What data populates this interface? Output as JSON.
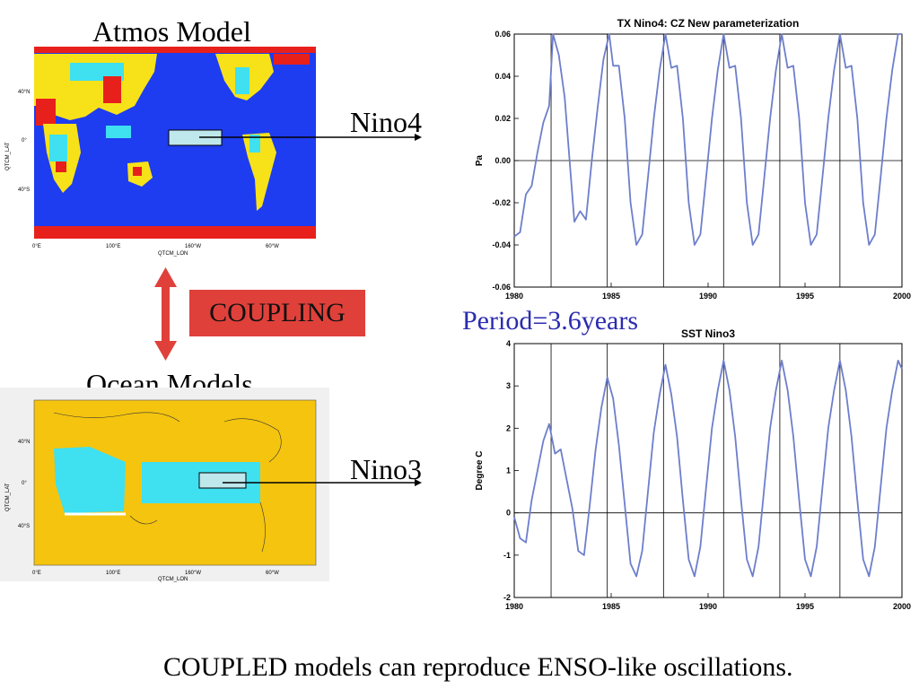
{
  "labels": {
    "atmos_title": "Atmos Model",
    "ocean_title": "Ocean Models",
    "coupling": "COUPLING",
    "nino4": "Nino4",
    "nino3": "Nino3",
    "period": "Period=3.6years",
    "caption": "COUPLED models can reproduce ENSO-like oscillations."
  },
  "maps": {
    "atmos": {
      "ylabel": "QTCM_LAT",
      "xlabel": "QTCM_LON",
      "xticks": [
        "0°E",
        "100°E",
        "160°W",
        "60°W"
      ],
      "yticks": [
        "40°N",
        "0°",
        "40°S"
      ]
    },
    "ocean": {
      "ylabel": "QTCM_LAT",
      "xlabel": "QTCM_LON",
      "xticks": [
        "0°E",
        "100°E",
        "160°W",
        "60°W"
      ],
      "yticks": [
        "40°N",
        "0°",
        "40°S"
      ]
    }
  },
  "colors": {
    "ocean_blue": "#1e3cf0",
    "cyan": "#3fe0f0",
    "yellow": "#f7e21a",
    "red": "#e8201c",
    "land_gold": "#f5c40f",
    "box_fill": "#bfe8ec",
    "series": "#6d7ecb",
    "coupling_bg": "#e0403a",
    "period_text": "#2b2bb0"
  },
  "chart_data": [
    {
      "type": "line",
      "title": "TX Nino4: CZ New parameterization",
      "xlabel": "",
      "ylabel": "Pa",
      "xlim": [
        1980,
        2000
      ],
      "ylim": [
        -0.06,
        0.06
      ],
      "xticks": [
        "1980",
        "1985",
        "1990",
        "1995",
        "2000"
      ],
      "yticks": [
        "-0.06",
        "-0.04",
        "-0.02",
        "0.00",
        "0.02",
        "0.04",
        "0.06"
      ],
      "grid": false,
      "vlines": [
        1981.9,
        1984.8,
        1987.7,
        1990.8,
        1993.7,
        1996.8
      ],
      "series": [
        {
          "x": [
            1980.0,
            1980.3,
            1980.6,
            1980.9,
            1981.2,
            1981.5,
            1981.8,
            1982.0,
            1982.3,
            1982.6,
            1982.9,
            1983.1,
            1983.4,
            1983.7,
            1984.0,
            1984.3,
            1984.6,
            1984.9,
            1985.1,
            1985.4,
            1985.7,
            1986.0,
            1986.3,
            1986.6,
            1986.9,
            1987.2,
            1987.5,
            1987.8,
            1988.1,
            1988.4,
            1988.7,
            1989.0,
            1989.3,
            1989.6,
            1989.9,
            1990.2,
            1990.5,
            1990.8,
            1991.1,
            1991.4,
            1991.7,
            1992.0,
            1992.3,
            1992.6,
            1992.9,
            1993.2,
            1993.5,
            1993.8,
            1994.1,
            1994.4,
            1994.7,
            1995.0,
            1995.3,
            1995.6,
            1995.9,
            1996.2,
            1996.5,
            1996.8,
            1997.1,
            1997.4,
            1997.7,
            1998.0,
            1998.3,
            1998.6,
            1998.9,
            1999.2,
            1999.5,
            1999.8,
            2000.0
          ],
          "y": [
            -0.036,
            -0.034,
            -0.016,
            -0.012,
            0.004,
            0.018,
            0.026,
            0.06,
            0.05,
            0.03,
            -0.005,
            -0.029,
            -0.024,
            -0.028,
            0.0,
            0.025,
            0.048,
            0.06,
            0.045,
            0.045,
            0.02,
            -0.02,
            -0.04,
            -0.035,
            -0.008,
            0.02,
            0.043,
            0.06,
            0.044,
            0.045,
            0.02,
            -0.02,
            -0.04,
            -0.035,
            -0.008,
            0.02,
            0.043,
            0.06,
            0.044,
            0.045,
            0.02,
            -0.02,
            -0.04,
            -0.035,
            -0.008,
            0.02,
            0.043,
            0.06,
            0.044,
            0.045,
            0.02,
            -0.02,
            -0.04,
            -0.035,
            -0.008,
            0.02,
            0.043,
            0.06,
            0.044,
            0.045,
            0.02,
            -0.02,
            -0.04,
            -0.035,
            -0.008,
            0.02,
            0.043,
            0.06,
            0.06
          ]
        }
      ]
    },
    {
      "type": "line",
      "title": "SST Nino3",
      "xlabel": "",
      "ylabel": "Degree C",
      "xlim": [
        1980,
        2000
      ],
      "ylim": [
        -2,
        4
      ],
      "xticks": [
        "1980",
        "1985",
        "1990",
        "1995",
        "2000"
      ],
      "yticks": [
        "-2",
        "-1",
        "0",
        "1",
        "2",
        "3",
        "4"
      ],
      "grid": false,
      "vlines": [
        1981.9,
        1984.8,
        1987.7,
        1990.8,
        1993.7,
        1996.8
      ],
      "series": [
        {
          "x": [
            1980.0,
            1980.3,
            1980.6,
            1980.9,
            1981.2,
            1981.5,
            1981.8,
            1982.1,
            1982.4,
            1982.7,
            1983.0,
            1983.3,
            1983.6,
            1983.9,
            1984.2,
            1984.5,
            1984.8,
            1985.1,
            1985.4,
            1985.7,
            1986.0,
            1986.3,
            1986.6,
            1986.9,
            1987.2,
            1987.5,
            1987.8,
            1988.1,
            1988.4,
            1988.7,
            1989.0,
            1989.3,
            1989.6,
            1989.9,
            1990.2,
            1990.5,
            1990.8,
            1991.1,
            1991.4,
            1991.7,
            1992.0,
            1992.3,
            1992.6,
            1992.9,
            1993.2,
            1993.5,
            1993.8,
            1994.1,
            1994.4,
            1994.7,
            1995.0,
            1995.3,
            1995.6,
            1995.9,
            1996.2,
            1996.5,
            1996.8,
            1997.1,
            1997.4,
            1997.7,
            1998.0,
            1998.3,
            1998.6,
            1998.9,
            1999.2,
            1999.5,
            1999.8,
            2000.0
          ],
          "y": [
            -0.1,
            -0.6,
            -0.7,
            0.3,
            1.0,
            1.7,
            2.1,
            1.4,
            1.5,
            0.8,
            0.1,
            -0.9,
            -1.0,
            0.2,
            1.5,
            2.5,
            3.2,
            2.7,
            1.6,
            0.2,
            -1.2,
            -1.5,
            -0.9,
            0.5,
            1.9,
            2.8,
            3.5,
            2.8,
            1.8,
            0.3,
            -1.1,
            -1.5,
            -0.8,
            0.6,
            2.0,
            2.9,
            3.6,
            2.9,
            1.8,
            0.3,
            -1.1,
            -1.5,
            -0.8,
            0.6,
            2.0,
            2.9,
            3.6,
            2.9,
            1.8,
            0.3,
            -1.1,
            -1.5,
            -0.8,
            0.6,
            2.0,
            2.9,
            3.6,
            2.9,
            1.8,
            0.3,
            -1.1,
            -1.5,
            -0.8,
            0.6,
            2.0,
            2.9,
            3.6,
            3.4
          ]
        }
      ]
    }
  ]
}
